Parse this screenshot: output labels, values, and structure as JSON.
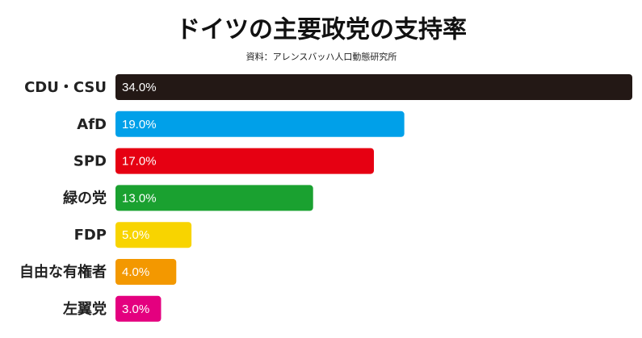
{
  "chart_data": {
    "type": "bar",
    "orientation": "horizontal",
    "title": "ドイツの主要政党の支持率",
    "source": "資料：アレンスバッハ人口動態研究所",
    "categories": [
      "CDU・CSU",
      "AfD",
      "SPD",
      "緑の党",
      "FDP",
      "自由な有権者",
      "左翼党"
    ],
    "values": [
      34,
      19,
      17,
      13,
      5,
      4,
      3
    ],
    "value_labels": [
      "34.0%",
      "19.0%",
      "17.0%",
      "13.0%",
      "5.0%",
      "4.0%",
      "3.0%"
    ],
    "colors": [
      "#231815",
      "#00a0e9",
      "#e60012",
      "#1aa130",
      "#f8d400",
      "#f39800",
      "#e4007f"
    ]
  }
}
